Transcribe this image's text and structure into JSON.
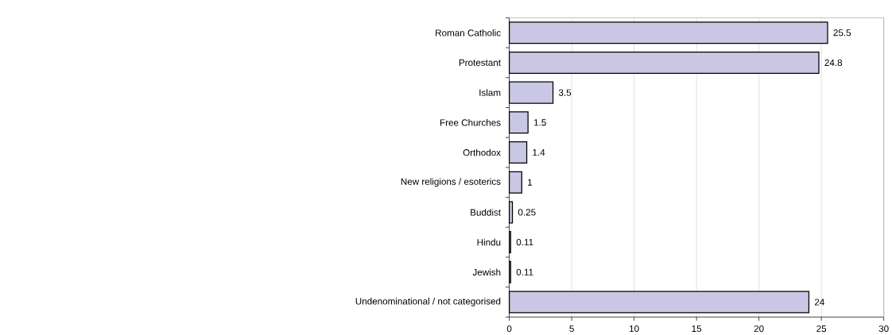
{
  "chart_data": {
    "type": "bar",
    "orientation": "horizontal",
    "categories": [
      "Roman Catholic",
      "Protestant",
      "Islam",
      "Free Churches",
      "Orthodox",
      "New religions / esoterics",
      "Buddist",
      "Hindu",
      "Jewish",
      "Undenominational / not categorised"
    ],
    "values": [
      25.5,
      24.8,
      3.5,
      1.5,
      1.4,
      1,
      0.25,
      0.11,
      0.11,
      24
    ],
    "color": "#c9c7e4",
    "xlim": [
      0,
      30
    ],
    "xticks": [
      0,
      5,
      10,
      15,
      20,
      25,
      30
    ],
    "grid": "x",
    "data_labels": true
  }
}
